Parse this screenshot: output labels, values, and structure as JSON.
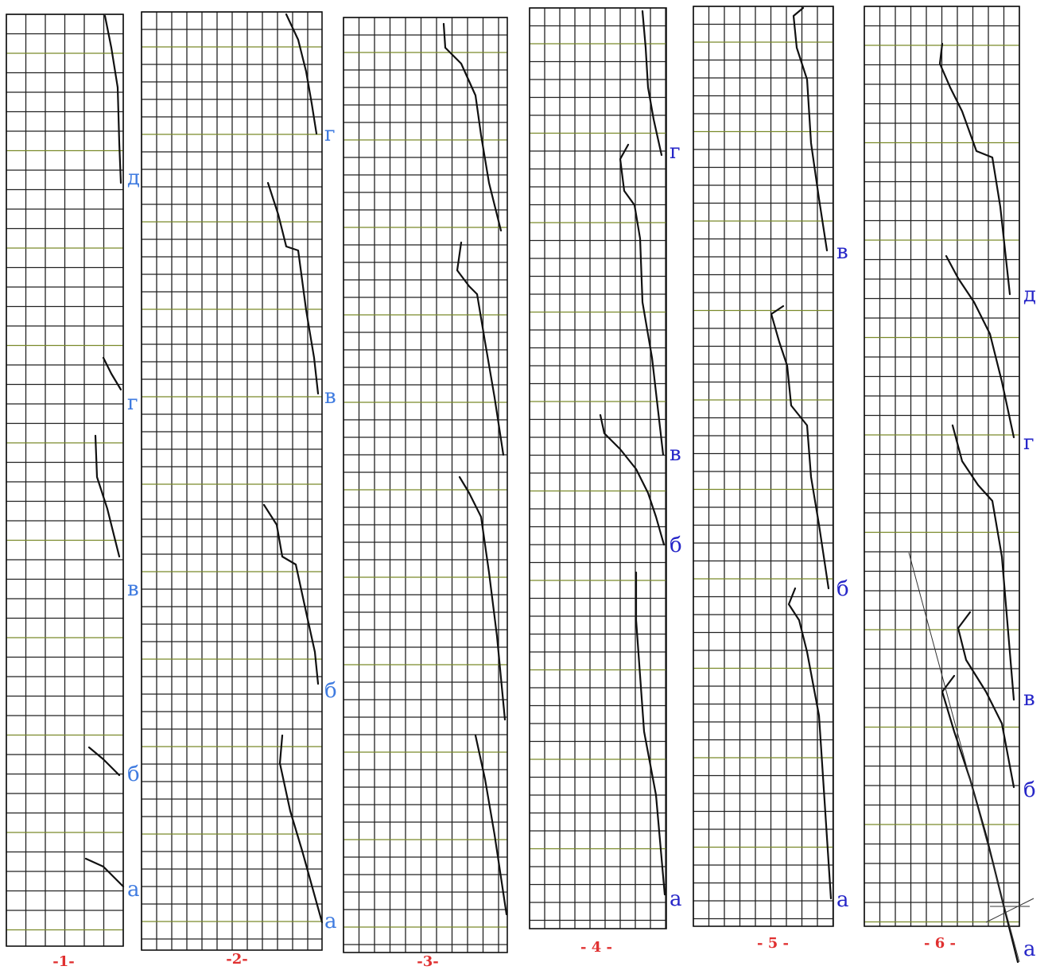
{
  "panels": [
    {
      "caption": "-1-",
      "labels": [
        "д",
        "г",
        "в",
        "б",
        "а"
      ]
    },
    {
      "caption": "-2-",
      "labels": [
        "г",
        "в",
        "б",
        "а"
      ]
    },
    {
      "caption": "-3-",
      "labels": []
    },
    {
      "caption": "- 4 -",
      "labels": [
        "г",
        "в",
        "б",
        "а"
      ]
    },
    {
      "caption": "- 5 -",
      "labels": [
        "в",
        "б",
        "а"
      ]
    },
    {
      "caption": "- 6 -",
      "labels": [
        "д",
        "г",
        "в",
        "б",
        "а"
      ]
    }
  ]
}
